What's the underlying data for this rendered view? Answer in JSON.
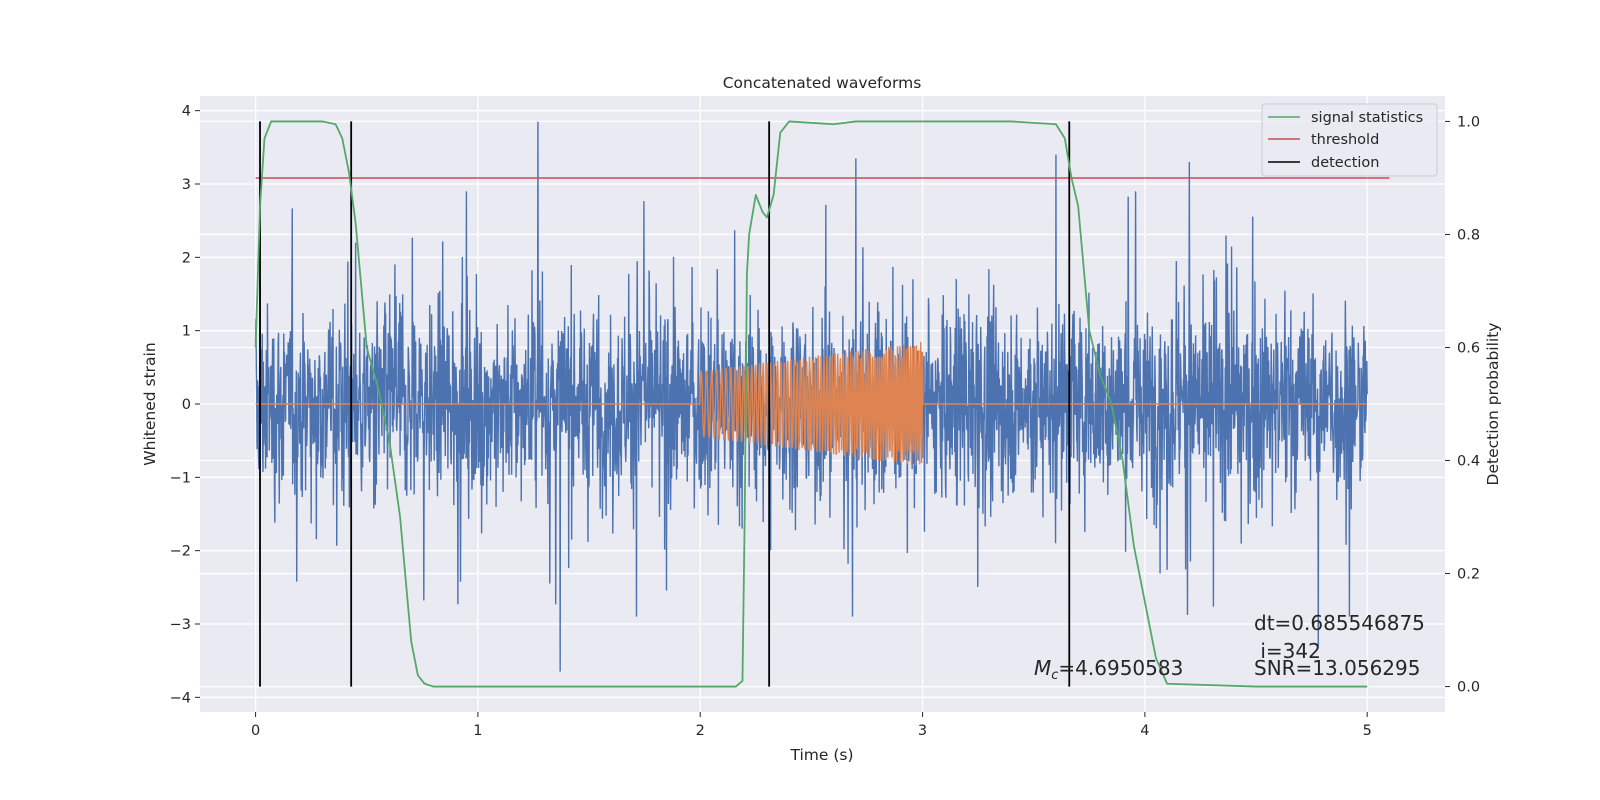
{
  "chart_data": {
    "type": "line",
    "title": "Concatenated waveforms",
    "xlabel": "Time (s)",
    "ylabel": "Whitened strain",
    "y2label": "Detection probability",
    "xlim": [
      -0.25,
      5.35
    ],
    "ylim": [
      -4.2,
      4.2
    ],
    "y2lim": [
      -0.045,
      1.045
    ],
    "xticks": [
      0,
      1,
      2,
      3,
      4,
      5
    ],
    "yticks": [
      -4,
      -3,
      -2,
      -1,
      0,
      1,
      2,
      3,
      4
    ],
    "y2ticks": [
      0.0,
      0.2,
      0.4,
      0.6,
      0.8,
      1.0
    ],
    "xtick_labels": [
      "0",
      "1",
      "2",
      "3",
      "4",
      "5"
    ],
    "ytick_labels": [
      "−4",
      "−3",
      "−2",
      "−1",
      "0",
      "1",
      "2",
      "3",
      "4"
    ],
    "y2tick_labels": [
      "0.0",
      "0.2",
      "0.4",
      "0.6",
      "0.8",
      "1.0"
    ],
    "grid": true,
    "legend_position": "top-right",
    "series": [
      {
        "role": "whitened strain noise",
        "axis": "left",
        "color": "#4c72b0",
        "x_range": [
          0,
          5
        ],
        "envelope": {
          "typical_amplitude": 2.2,
          "spike_peaks": [
            {
              "x": 0.02,
              "y": 1.7
            },
            {
              "x": 0.45,
              "y": 2.2
            },
            {
              "x": 1.27,
              "y": 3.85
            },
            {
              "x": 1.37,
              "y": -3.65
            },
            {
              "x": 2.7,
              "y": 3.35
            },
            {
              "x": 3.6,
              "y": 3.4
            },
            {
              "x": 4.2,
              "y": 3.3
            },
            {
              "x": 4.78,
              "y": -3.3
            }
          ]
        }
      },
      {
        "role": "injected waveform",
        "axis": "left",
        "color": "#dd8452",
        "x_range": [
          0,
          5
        ],
        "chirp": {
          "start": 2.0,
          "end": 3.0,
          "amp_start": 0.45,
          "amp_end": 0.85,
          "f_start": 40,
          "f_end": 110
        }
      },
      {
        "name": "signal statistics",
        "axis": "right",
        "color": "#55a868",
        "x": [
          0,
          0.02,
          0.04,
          0.07,
          0.1,
          0.2,
          0.3,
          0.36,
          0.39,
          0.42,
          0.45,
          0.5,
          0.55,
          0.6,
          0.65,
          0.7,
          0.73,
          0.76,
          0.8,
          1.0,
          1.5,
          2.0,
          2.1,
          2.16,
          2.19,
          2.2,
          2.21,
          2.22,
          2.25,
          2.28,
          2.3,
          2.33,
          2.36,
          2.4,
          2.6,
          2.7,
          2.9,
          3.4,
          3.6,
          3.64,
          3.67,
          3.7,
          3.75,
          3.8,
          3.85,
          3.9,
          3.95,
          4.0,
          4.05,
          4.1,
          4.5,
          5.0
        ],
        "values": [
          0.6,
          0.85,
          0.97,
          1.0,
          1.0,
          1.0,
          1.0,
          0.995,
          0.97,
          0.91,
          0.82,
          0.6,
          0.53,
          0.44,
          0.3,
          0.08,
          0.02,
          0.005,
          0.0,
          0.0,
          0.0,
          0.0,
          0.0,
          0.0,
          0.01,
          0.3,
          0.73,
          0.8,
          0.87,
          0.84,
          0.83,
          0.87,
          0.98,
          1.0,
          0.995,
          1.0,
          1.0,
          1.0,
          0.995,
          0.97,
          0.9,
          0.85,
          0.63,
          0.55,
          0.5,
          0.4,
          0.25,
          0.15,
          0.05,
          0.005,
          0.0,
          0.0
        ]
      },
      {
        "name": "threshold",
        "axis": "right",
        "color": "#c44e52",
        "x": [
          0,
          5.1
        ],
        "values": [
          0.9,
          0.9
        ]
      },
      {
        "name": "detection",
        "axis": "right",
        "color": "#000000",
        "vlines": [
          0.02,
          0.43,
          2.31,
          3.66
        ],
        "ymin": 0.0,
        "ymax": 1.0
      }
    ],
    "annotations": [
      {
        "text": "dt=0.685546875",
        "x": 4.5,
        "y": -3.0
      },
      {
        "text": " i=342",
        "x": 4.5,
        "y": -3.35
      },
      {
        "text": "=4.6950583",
        "math_prefix": "Mc",
        "x": 3.5,
        "y": -3.55
      },
      {
        "text": "SNR=13.056295",
        "x": 4.5,
        "y": -3.55
      }
    ]
  }
}
